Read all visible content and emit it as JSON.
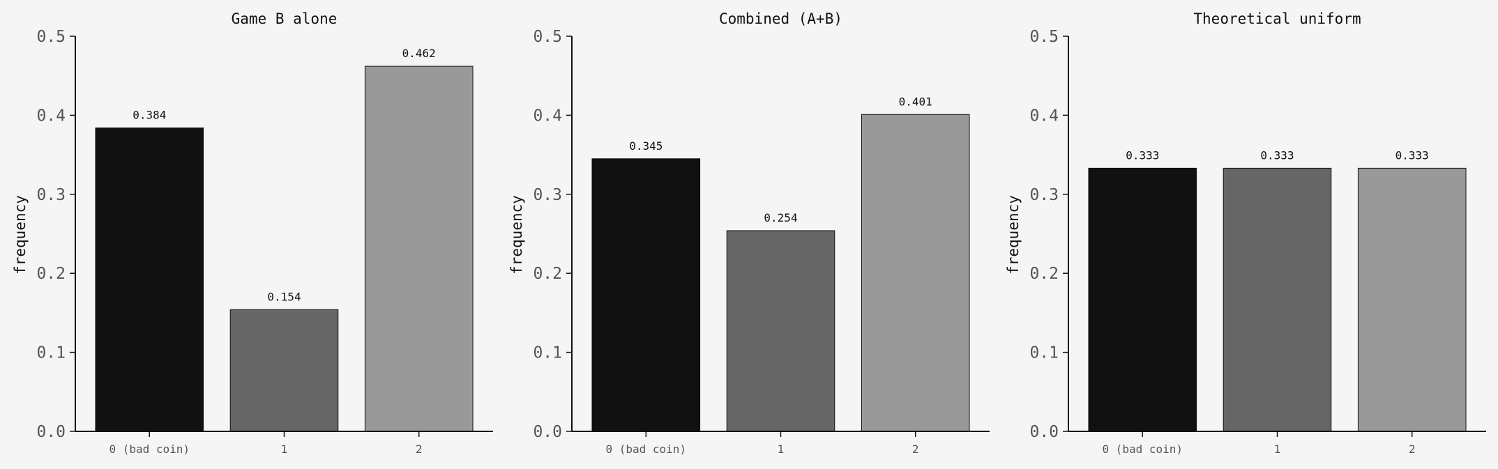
{
  "chart_data": [
    {
      "type": "bar",
      "title": "Game B alone",
      "ylabel": "frequency",
      "xlabel": "",
      "categories": [
        "0 (bad coin)",
        "1",
        "2"
      ],
      "values": [
        0.384,
        0.154,
        0.462
      ],
      "value_labels": [
        "0.384",
        "0.154",
        "0.462"
      ],
      "ylim": [
        0,
        0.5
      ],
      "yticks": [
        "0.0",
        "0.1",
        "0.2",
        "0.3",
        "0.4",
        "0.5"
      ],
      "grid": false
    },
    {
      "type": "bar",
      "title": "Combined (A+B)",
      "ylabel": "frequency",
      "xlabel": "",
      "categories": [
        "0 (bad coin)",
        "1",
        "2"
      ],
      "values": [
        0.345,
        0.254,
        0.401
      ],
      "value_labels": [
        "0.345",
        "0.254",
        "0.401"
      ],
      "ylim": [
        0,
        0.5
      ],
      "yticks": [
        "0.0",
        "0.1",
        "0.2",
        "0.3",
        "0.4",
        "0.5"
      ],
      "grid": false
    },
    {
      "type": "bar",
      "title": "Theoretical uniform",
      "ylabel": "frequency",
      "xlabel": "",
      "categories": [
        "0 (bad coin)",
        "1",
        "2"
      ],
      "values": [
        0.333,
        0.333,
        0.333
      ],
      "value_labels": [
        "0.333",
        "0.333",
        "0.333"
      ],
      "ylim": [
        0,
        0.5
      ],
      "yticks": [
        "0.0",
        "0.1",
        "0.2",
        "0.3",
        "0.4",
        "0.5"
      ],
      "grid": false
    }
  ],
  "colors": {
    "background": "#f5f5f5",
    "bars": [
      "#111111",
      "#666666",
      "#999999"
    ],
    "axis": "#111111",
    "tick_label": "#555555"
  }
}
